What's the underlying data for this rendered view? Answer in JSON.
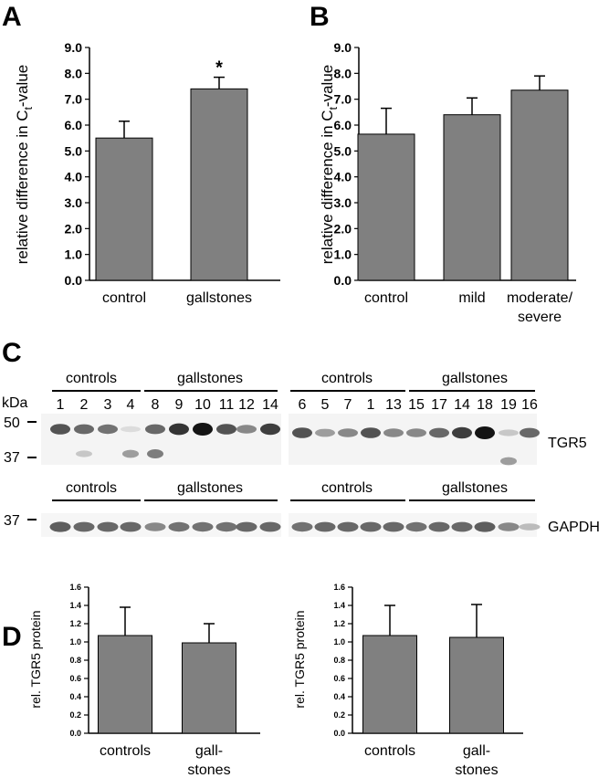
{
  "figure": {
    "panel_labels": [
      "A",
      "B",
      "C",
      "D"
    ]
  },
  "chart_data": [
    {
      "id": "A",
      "type": "bar",
      "categories": [
        "control",
        "gallstones"
      ],
      "category_lines": [
        [
          "control"
        ],
        [
          "gallstones"
        ]
      ],
      "values": [
        5.5,
        7.4
      ],
      "errors": [
        0.65,
        0.45
      ],
      "annotations": [
        "",
        "*"
      ],
      "ylabel_main": "relative difference in C",
      "ylabel_sub": "t",
      "ylabel_tail": "-value",
      "ylim": [
        0,
        9
      ],
      "yticks": [
        "0.0",
        "1.0",
        "2.0",
        "3.0",
        "4.0",
        "5.0",
        "6.0",
        "7.0",
        "8.0",
        "9.0"
      ],
      "bar_color": "#808080"
    },
    {
      "id": "B",
      "type": "bar",
      "categories": [
        "control",
        "mild",
        "moderate/ severe"
      ],
      "category_lines": [
        [
          "control"
        ],
        [
          "mild"
        ],
        [
          "moderate/",
          "severe"
        ]
      ],
      "values": [
        5.65,
        6.4,
        7.35
      ],
      "errors": [
        1.0,
        0.65,
        0.55
      ],
      "annotations": [
        "",
        "",
        ""
      ],
      "ylabel_main": "relative difference in C",
      "ylabel_sub": "t",
      "ylabel_tail": "-value",
      "ylim": [
        0,
        9
      ],
      "yticks": [
        "0.0",
        "1.0",
        "2.0",
        "3.0",
        "4.0",
        "5.0",
        "6.0",
        "7.0",
        "8.0",
        "9.0"
      ],
      "bar_color": "#808080"
    },
    {
      "id": "D1",
      "type": "bar",
      "categories": [
        "controls",
        "gall- stones"
      ],
      "category_lines": [
        [
          "controls"
        ],
        [
          "gall-",
          "stones"
        ]
      ],
      "values": [
        1.07,
        0.99
      ],
      "errors": [
        0.31,
        0.21
      ],
      "annotations": [
        "",
        ""
      ],
      "ylabel_main": "rel. TGR5 protein",
      "ylabel_sub": "",
      "ylabel_tail": "",
      "ylim": [
        0,
        1.6
      ],
      "yticks": [
        "0.0",
        "0.2",
        "0.4",
        "0.6",
        "0.8",
        "1.0",
        "1.2",
        "1.4",
        "1.6"
      ],
      "bar_color": "#808080"
    },
    {
      "id": "D2",
      "type": "bar",
      "categories": [
        "controls",
        "gall- stones"
      ],
      "category_lines": [
        [
          "controls"
        ],
        [
          "gall-",
          "stones"
        ]
      ],
      "values": [
        1.07,
        1.05
      ],
      "errors": [
        0.33,
        0.36
      ],
      "annotations": [
        "",
        ""
      ],
      "ylabel_main": "rel. TGR5 protein",
      "ylabel_sub": "",
      "ylabel_tail": "",
      "ylim": [
        0,
        1.6
      ],
      "yticks": [
        "0.0",
        "0.2",
        "0.4",
        "0.6",
        "0.8",
        "1.0",
        "1.2",
        "1.4",
        "1.6"
      ],
      "bar_color": "#808080"
    }
  ],
  "blots": {
    "kda_label": "kDa",
    "markers": [
      "50",
      "37",
      "37"
    ],
    "groups": [
      "controls",
      "gallstones",
      "controls",
      "gallstones"
    ],
    "lanes_left": [
      "1",
      "2",
      "3",
      "4",
      "8",
      "9",
      "10",
      "11",
      "12",
      "14"
    ],
    "lanes_right": [
      "6",
      "5",
      "7",
      "1",
      "13",
      "15",
      "17",
      "14",
      "18",
      "19",
      "16"
    ],
    "tgr5_label": "TGR5",
    "gapdh_label": "GAPDH",
    "tgr5_left": [
      0.7,
      0.6,
      0.55,
      0.05,
      0.6,
      0.85,
      1.0,
      0.7,
      0.45,
      0.8
    ],
    "tgr5_right": [
      0.7,
      0.35,
      0.45,
      0.7,
      0.45,
      0.45,
      0.6,
      0.8,
      1.0,
      0.15,
      0.6
    ],
    "gapdh_left": [
      0.65,
      0.6,
      0.6,
      0.6,
      0.45,
      0.55,
      0.55,
      0.55,
      0.6,
      0.6
    ],
    "gapdh_right": [
      0.55,
      0.6,
      0.6,
      0.6,
      0.6,
      0.55,
      0.6,
      0.6,
      0.65,
      0.45,
      0.2
    ]
  }
}
